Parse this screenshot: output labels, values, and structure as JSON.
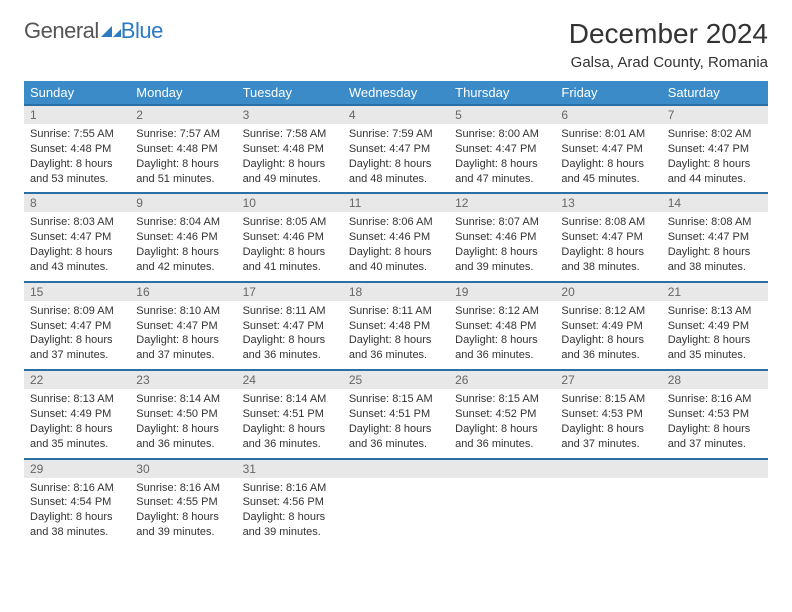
{
  "logo": {
    "text1": "General",
    "text2": "Blue"
  },
  "title": "December 2024",
  "location": "Galsa, Arad County, Romania",
  "colors": {
    "header_bg": "#3b8bc9",
    "header_text": "#ffffff",
    "daynum_bg": "#e8e8e8",
    "daynum_border": "#2b6fa3",
    "logo_gray": "#555555",
    "logo_blue": "#2b7ac2"
  },
  "weekdays": [
    "Sunday",
    "Monday",
    "Tuesday",
    "Wednesday",
    "Thursday",
    "Friday",
    "Saturday"
  ],
  "days": [
    {
      "n": "1",
      "sr": "7:55 AM",
      "ss": "4:48 PM",
      "dl": "8 hours and 53 minutes."
    },
    {
      "n": "2",
      "sr": "7:57 AM",
      "ss": "4:48 PM",
      "dl": "8 hours and 51 minutes."
    },
    {
      "n": "3",
      "sr": "7:58 AM",
      "ss": "4:48 PM",
      "dl": "8 hours and 49 minutes."
    },
    {
      "n": "4",
      "sr": "7:59 AM",
      "ss": "4:47 PM",
      "dl": "8 hours and 48 minutes."
    },
    {
      "n": "5",
      "sr": "8:00 AM",
      "ss": "4:47 PM",
      "dl": "8 hours and 47 minutes."
    },
    {
      "n": "6",
      "sr": "8:01 AM",
      "ss": "4:47 PM",
      "dl": "8 hours and 45 minutes."
    },
    {
      "n": "7",
      "sr": "8:02 AM",
      "ss": "4:47 PM",
      "dl": "8 hours and 44 minutes."
    },
    {
      "n": "8",
      "sr": "8:03 AM",
      "ss": "4:47 PM",
      "dl": "8 hours and 43 minutes."
    },
    {
      "n": "9",
      "sr": "8:04 AM",
      "ss": "4:46 PM",
      "dl": "8 hours and 42 minutes."
    },
    {
      "n": "10",
      "sr": "8:05 AM",
      "ss": "4:46 PM",
      "dl": "8 hours and 41 minutes."
    },
    {
      "n": "11",
      "sr": "8:06 AM",
      "ss": "4:46 PM",
      "dl": "8 hours and 40 minutes."
    },
    {
      "n": "12",
      "sr": "8:07 AM",
      "ss": "4:46 PM",
      "dl": "8 hours and 39 minutes."
    },
    {
      "n": "13",
      "sr": "8:08 AM",
      "ss": "4:47 PM",
      "dl": "8 hours and 38 minutes."
    },
    {
      "n": "14",
      "sr": "8:08 AM",
      "ss": "4:47 PM",
      "dl": "8 hours and 38 minutes."
    },
    {
      "n": "15",
      "sr": "8:09 AM",
      "ss": "4:47 PM",
      "dl": "8 hours and 37 minutes."
    },
    {
      "n": "16",
      "sr": "8:10 AM",
      "ss": "4:47 PM",
      "dl": "8 hours and 37 minutes."
    },
    {
      "n": "17",
      "sr": "8:11 AM",
      "ss": "4:47 PM",
      "dl": "8 hours and 36 minutes."
    },
    {
      "n": "18",
      "sr": "8:11 AM",
      "ss": "4:48 PM",
      "dl": "8 hours and 36 minutes."
    },
    {
      "n": "19",
      "sr": "8:12 AM",
      "ss": "4:48 PM",
      "dl": "8 hours and 36 minutes."
    },
    {
      "n": "20",
      "sr": "8:12 AM",
      "ss": "4:49 PM",
      "dl": "8 hours and 36 minutes."
    },
    {
      "n": "21",
      "sr": "8:13 AM",
      "ss": "4:49 PM",
      "dl": "8 hours and 35 minutes."
    },
    {
      "n": "22",
      "sr": "8:13 AM",
      "ss": "4:49 PM",
      "dl": "8 hours and 35 minutes."
    },
    {
      "n": "23",
      "sr": "8:14 AM",
      "ss": "4:50 PM",
      "dl": "8 hours and 36 minutes."
    },
    {
      "n": "24",
      "sr": "8:14 AM",
      "ss": "4:51 PM",
      "dl": "8 hours and 36 minutes."
    },
    {
      "n": "25",
      "sr": "8:15 AM",
      "ss": "4:51 PM",
      "dl": "8 hours and 36 minutes."
    },
    {
      "n": "26",
      "sr": "8:15 AM",
      "ss": "4:52 PM",
      "dl": "8 hours and 36 minutes."
    },
    {
      "n": "27",
      "sr": "8:15 AM",
      "ss": "4:53 PM",
      "dl": "8 hours and 37 minutes."
    },
    {
      "n": "28",
      "sr": "8:16 AM",
      "ss": "4:53 PM",
      "dl": "8 hours and 37 minutes."
    },
    {
      "n": "29",
      "sr": "8:16 AM",
      "ss": "4:54 PM",
      "dl": "8 hours and 38 minutes."
    },
    {
      "n": "30",
      "sr": "8:16 AM",
      "ss": "4:55 PM",
      "dl": "8 hours and 39 minutes."
    },
    {
      "n": "31",
      "sr": "8:16 AM",
      "ss": "4:56 PM",
      "dl": "8 hours and 39 minutes."
    }
  ],
  "labels": {
    "sunrise": "Sunrise:",
    "sunset": "Sunset:",
    "daylight": "Daylight:"
  }
}
